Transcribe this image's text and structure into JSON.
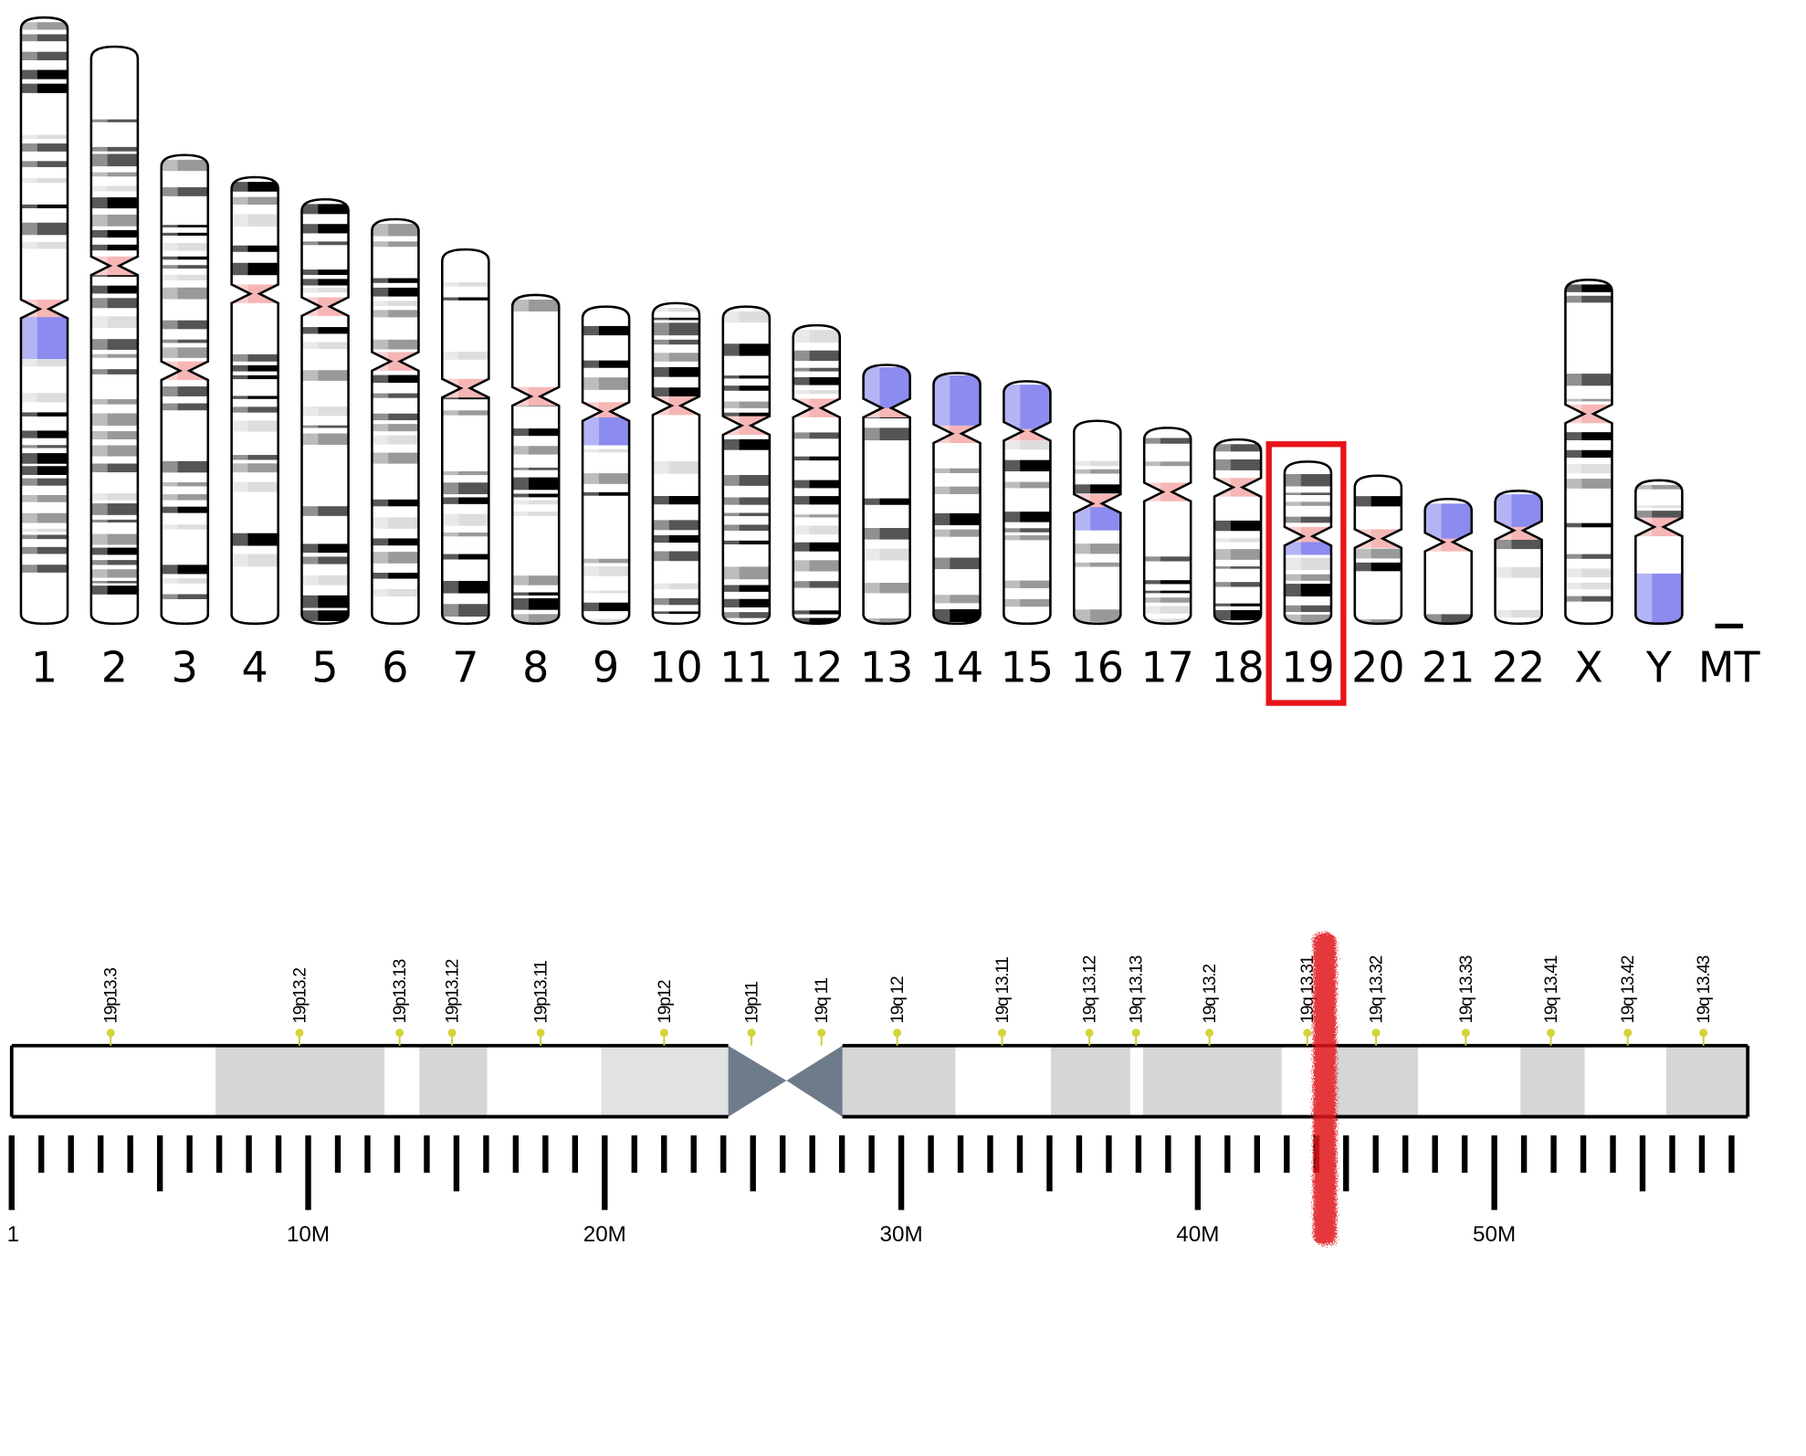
{
  "chromosomes": [
    "1",
    "2",
    "3",
    "4",
    "5",
    "6",
    "7",
    "8",
    "9",
    "10",
    "11",
    "12",
    "13",
    "14",
    "15",
    "16",
    "17",
    "18",
    "19",
    "20",
    "21",
    "22",
    "X",
    "Y",
    "MT"
  ],
  "bands": [
    "19p13.3",
    "19p13.2",
    "19p13.13",
    "19p13.12",
    "19p13.11",
    "19p12",
    "19p11",
    "19q 11",
    "19q 12",
    "19q 13.11",
    "19q 13.12",
    "19q 13.13",
    "19q 13.2",
    "19q 13.31",
    "19q 13.32",
    "19q 13.33",
    "19q 13.41",
    "19q 13.42",
    "19q 13.43"
  ],
  "scale_labels": [
    "1",
    "10M",
    "20M",
    "30M",
    "40M",
    "50M"
  ]
}
